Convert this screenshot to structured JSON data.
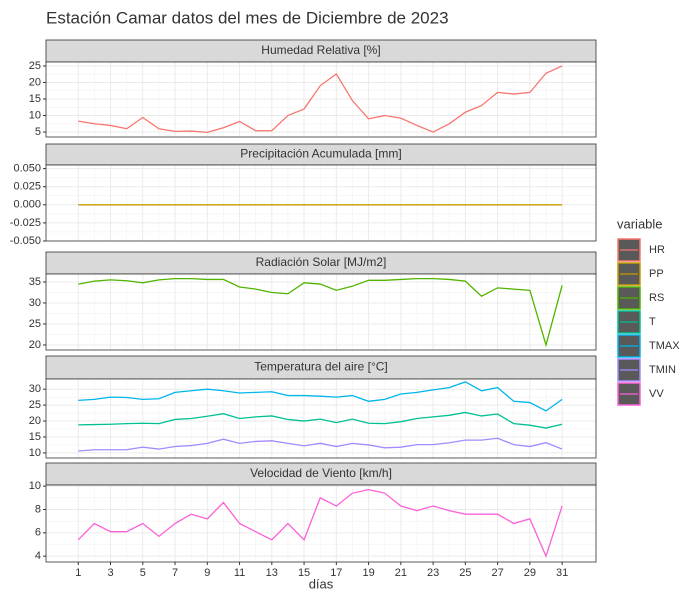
{
  "title": "Estación Camar datos del mes de Diciembre de 2023",
  "xlabel": "días",
  "legend_title": "variable",
  "chart_data": [
    {
      "type": "line",
      "title": "Humedad Relativa [%]",
      "x": [
        1,
        2,
        3,
        4,
        5,
        6,
        7,
        8,
        9,
        10,
        11,
        12,
        13,
        14,
        15,
        16,
        17,
        18,
        19,
        20,
        21,
        22,
        23,
        24,
        25,
        26,
        27,
        28,
        29,
        30,
        31
      ],
      "series": [
        {
          "name": "HR",
          "color": "#F8766D",
          "values": [
            8.3,
            7.5,
            7,
            6,
            9.4,
            6,
            5.2,
            5.3,
            4.9,
            6.3,
            8.2,
            5.4,
            5.4,
            10,
            12,
            19,
            22.6,
            14.5,
            9,
            10,
            9.2,
            7,
            5,
            7.5,
            11,
            13,
            17,
            16.5,
            17,
            22.8,
            25
          ]
        }
      ],
      "xlim": [
        -1,
        33.1
      ],
      "ylim": [
        3.5,
        26.2
      ],
      "yticks": [
        5,
        10,
        15,
        20,
        25
      ]
    },
    {
      "type": "line",
      "title": "Precipitación Acumulada [mm]",
      "x": [
        1,
        2,
        3,
        4,
        5,
        6,
        7,
        8,
        9,
        10,
        11,
        12,
        13,
        14,
        15,
        16,
        17,
        18,
        19,
        20,
        21,
        22,
        23,
        24,
        25,
        26,
        27,
        28,
        29,
        30,
        31
      ],
      "series": [
        {
          "name": "PP",
          "color": "#C49A00",
          "values": [
            0,
            0,
            0,
            0,
            0,
            0,
            0,
            0,
            0,
            0,
            0,
            0,
            0,
            0,
            0,
            0,
            0,
            0,
            0,
            0,
            0,
            0,
            0,
            0,
            0,
            0,
            0,
            0,
            0,
            0,
            0
          ]
        }
      ],
      "xlim": [
        -1,
        33.1
      ],
      "ylim": [
        -0.05,
        0.055
      ],
      "yticks": [
        {
          "value": -0.05,
          "label": "-0.050"
        },
        {
          "value": -0.025,
          "label": "-0.025"
        },
        {
          "value": 0,
          "label": "0.000"
        },
        {
          "value": 0.025,
          "label": "0.025"
        },
        {
          "value": 0.05,
          "label": "0.050"
        }
      ]
    },
    {
      "type": "line",
      "title": "Radiación Solar [MJ/m2]",
      "x": [
        1,
        2,
        3,
        4,
        5,
        6,
        7,
        8,
        9,
        10,
        11,
        12,
        13,
        14,
        15,
        16,
        17,
        18,
        19,
        20,
        21,
        22,
        23,
        24,
        25,
        26,
        27,
        28,
        29,
        30,
        31
      ],
      "series": [
        {
          "name": "RS",
          "color": "#53B400",
          "values": [
            34.5,
            35.2,
            35.5,
            35.3,
            34.8,
            35.5,
            35.8,
            35.8,
            35.6,
            35.6,
            33.8,
            33.3,
            32.5,
            32.2,
            34.8,
            34.5,
            33,
            34,
            35.4,
            35.4,
            35.6,
            35.8,
            35.8,
            35.6,
            35.2,
            31.6,
            33.6,
            33.3,
            33,
            20,
            34.2
          ]
        }
      ],
      "xlim": [
        -1,
        33.1
      ],
      "ylim": [
        18.8,
        36.9
      ],
      "yticks": [
        20,
        25,
        30,
        35
      ]
    },
    {
      "type": "line",
      "title": "Temperatura del aire [°C]",
      "x": [
        1,
        2,
        3,
        4,
        5,
        6,
        7,
        8,
        9,
        10,
        11,
        12,
        13,
        14,
        15,
        16,
        17,
        18,
        19,
        20,
        21,
        22,
        23,
        24,
        25,
        26,
        27,
        28,
        29,
        30,
        31
      ],
      "series": [
        {
          "name": "T",
          "color": "#00C094",
          "values": [
            18.8,
            18.9,
            19,
            19.2,
            19.3,
            19.2,
            20.5,
            20.8,
            21.5,
            22.3,
            20.8,
            21.3,
            21.6,
            20.5,
            20,
            20.6,
            19.5,
            20.6,
            19.3,
            19.2,
            19.8,
            20.8,
            21.3,
            21.8,
            22.7,
            21.6,
            22.2,
            19.2,
            18.7,
            17.8,
            19
          ]
        },
        {
          "name": "TMAX",
          "color": "#00B6EB",
          "values": [
            26.5,
            26.8,
            27.5,
            27.4,
            26.8,
            27,
            29,
            29.5,
            30,
            29.5,
            28.8,
            29,
            29.2,
            28,
            28,
            27.8,
            27.5,
            28,
            26.2,
            26.8,
            28.5,
            29,
            29.8,
            30.5,
            32.3,
            29.5,
            30.5,
            26.2,
            25.8,
            23.2,
            26.8
          ]
        },
        {
          "name": "TMIN",
          "color": "#A58AFF",
          "values": [
            10.6,
            11,
            11,
            11,
            11.8,
            11.2,
            12,
            12.3,
            13,
            14.3,
            13,
            13.6,
            13.8,
            13,
            12.2,
            13,
            12,
            13,
            12.5,
            11.6,
            11.8,
            12.6,
            12.6,
            13.2,
            14,
            14,
            14.6,
            12.6,
            12,
            13.2,
            11.2
          ]
        }
      ],
      "xlim": [
        -1,
        33.1
      ],
      "ylim": [
        8.4,
        33.2
      ],
      "yticks": [
        10,
        15,
        20,
        25,
        30
      ]
    },
    {
      "type": "line",
      "title": "Velocidad de Viento [km/h]",
      "x": [
        1,
        2,
        3,
        4,
        5,
        6,
        7,
        8,
        9,
        10,
        11,
        12,
        13,
        14,
        15,
        16,
        17,
        18,
        19,
        20,
        21,
        22,
        23,
        24,
        25,
        26,
        27,
        28,
        29,
        30,
        31
      ],
      "series": [
        {
          "name": "VV",
          "color": "#FB61D7",
          "values": [
            5.4,
            6.8,
            6.1,
            6.1,
            6.8,
            5.7,
            6.8,
            7.6,
            7.2,
            8.6,
            6.8,
            6.1,
            5.4,
            6.8,
            5.4,
            9,
            8.3,
            9.4,
            9.7,
            9.4,
            8.3,
            7.9,
            8.3,
            7.9,
            7.6,
            7.6,
            7.6,
            6.8,
            7.2,
            4,
            8.3
          ]
        }
      ],
      "xlim": [
        -1,
        33.1
      ],
      "ylim": [
        3.5,
        10.1
      ],
      "yticks": [
        4,
        6,
        8,
        10
      ],
      "xticks": [
        1,
        3,
        5,
        7,
        9,
        11,
        13,
        15,
        17,
        19,
        21,
        23,
        25,
        27,
        29,
        31
      ]
    }
  ]
}
